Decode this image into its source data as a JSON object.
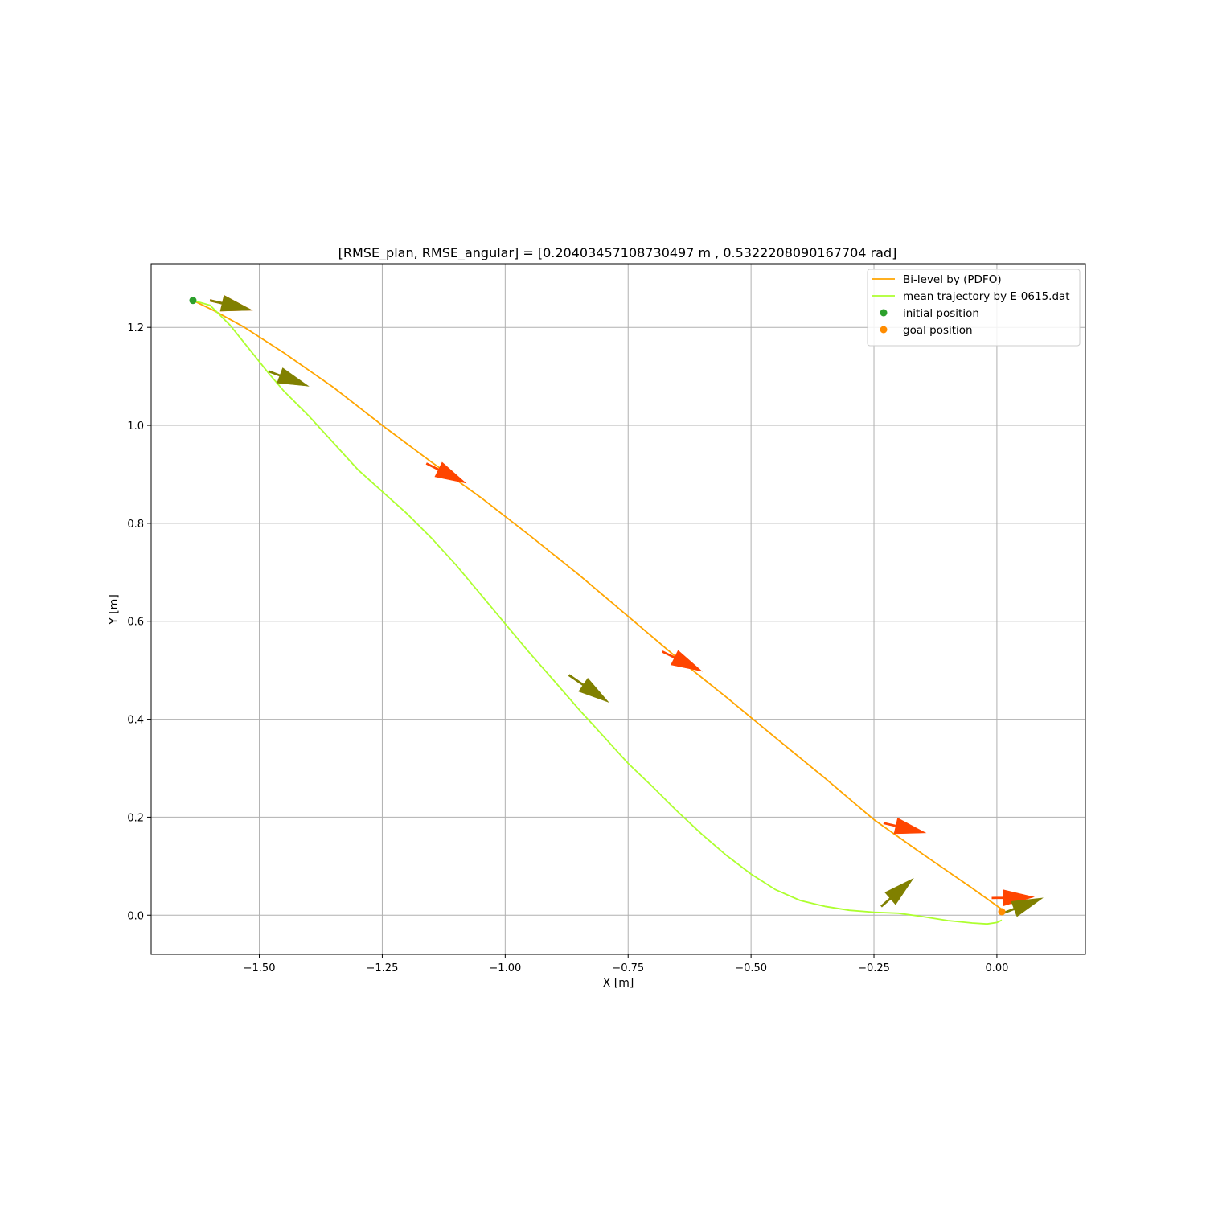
{
  "chart_data": {
    "type": "line",
    "title": "[RMSE_plan, RMSE_angular] = [0.20403457108730497 m , 0.5322208090167704 rad]",
    "xlabel": "X [m]",
    "ylabel": "Y [m]",
    "xlim": [
      -1.72,
      0.18
    ],
    "ylim": [
      -0.08,
      1.33
    ],
    "grid": true,
    "legend_position": "top-right",
    "xticks": [
      {
        "value": -1.5,
        "label": "−1.50"
      },
      {
        "value": -1.25,
        "label": "−1.25"
      },
      {
        "value": -1.0,
        "label": "−1.00"
      },
      {
        "value": -0.75,
        "label": "−0.75"
      },
      {
        "value": -0.5,
        "label": "−0.50"
      },
      {
        "value": -0.25,
        "label": "−0.25"
      },
      {
        "value": 0.0,
        "label": "0.00"
      }
    ],
    "yticks": [
      {
        "value": 0.0,
        "label": "0.0"
      },
      {
        "value": 0.2,
        "label": "0.2"
      },
      {
        "value": 0.4,
        "label": "0.4"
      },
      {
        "value": 0.6,
        "label": "0.6"
      },
      {
        "value": 0.8,
        "label": "0.8"
      },
      {
        "value": 1.0,
        "label": "1.0"
      },
      {
        "value": 1.2,
        "label": "1.2"
      }
    ],
    "series": [
      {
        "name": "Bi-level by (PDFO)",
        "kind": "line",
        "color": "#ffa500",
        "x": [
          -1.635,
          -1.59,
          -1.53,
          -1.45,
          -1.35,
          -1.25,
          -1.15,
          -1.05,
          -0.95,
          -0.85,
          -0.75,
          -0.65,
          -0.55,
          -0.45,
          -0.35,
          -0.25,
          -0.15,
          -0.05,
          0.01
        ],
        "y": [
          1.255,
          1.233,
          1.2,
          1.148,
          1.078,
          1.0,
          0.925,
          0.853,
          0.775,
          0.695,
          0.61,
          0.525,
          0.445,
          0.362,
          0.28,
          0.195,
          0.124,
          0.055,
          0.012
        ]
      },
      {
        "name": "mean trajectory by E-0615.dat",
        "kind": "line",
        "color": "#adff2f",
        "x": [
          -1.635,
          -1.6,
          -1.56,
          -1.52,
          -1.48,
          -1.45,
          -1.4,
          -1.35,
          -1.3,
          -1.25,
          -1.2,
          -1.15,
          -1.1,
          -1.05,
          -1.0,
          -0.95,
          -0.9,
          -0.85,
          -0.8,
          -0.75,
          -0.7,
          -0.65,
          -0.6,
          -0.55,
          -0.5,
          -0.45,
          -0.4,
          -0.35,
          -0.3,
          -0.25,
          -0.2,
          -0.15,
          -0.1,
          -0.05,
          -0.02,
          0.0,
          0.01
        ],
        "y": [
          1.255,
          1.245,
          1.205,
          1.155,
          1.105,
          1.07,
          1.02,
          0.965,
          0.91,
          0.865,
          0.82,
          0.77,
          0.715,
          0.655,
          0.595,
          0.535,
          0.478,
          0.42,
          0.365,
          0.31,
          0.262,
          0.212,
          0.165,
          0.122,
          0.084,
          0.052,
          0.03,
          0.018,
          0.01,
          0.006,
          0.004,
          -0.003,
          -0.011,
          -0.016,
          -0.018,
          -0.015,
          -0.01
        ]
      },
      {
        "name": "initial position",
        "kind": "point",
        "color": "#2ca02c",
        "x": [
          -1.635
        ],
        "y": [
          1.255
        ]
      },
      {
        "name": "goal position",
        "kind": "point",
        "color": "#ff8c00",
        "x": [
          0.01
        ],
        "y": [
          0.007
        ]
      }
    ],
    "arrows": [
      {
        "series": "Bi-level by (PDFO)",
        "color": "#ff4500",
        "x": -1.6,
        "y": 1.255,
        "dx": 0.085,
        "dy": -0.02
      },
      {
        "series": "Bi-level by (PDFO)",
        "color": "#ff4500",
        "x": -1.16,
        "y": 0.922,
        "dx": 0.08,
        "dy": -0.04
      },
      {
        "series": "Bi-level by (PDFO)",
        "color": "#ff4500",
        "x": -0.68,
        "y": 0.538,
        "dx": 0.08,
        "dy": -0.04
      },
      {
        "series": "Bi-level by (PDFO)",
        "color": "#ff4500",
        "x": -0.23,
        "y": 0.188,
        "dx": 0.085,
        "dy": -0.02
      },
      {
        "series": "Bi-level by (PDFO)",
        "color": "#ff4500",
        "x": -0.01,
        "y": 0.035,
        "dx": 0.085,
        "dy": 0.002
      },
      {
        "series": "mean trajectory by E-0615.dat",
        "color": "#808000",
        "x": -1.6,
        "y": 1.255,
        "dx": 0.085,
        "dy": -0.02
      },
      {
        "series": "mean trajectory by E-0615.dat",
        "color": "#808000",
        "x": -1.48,
        "y": 1.11,
        "dx": 0.08,
        "dy": -0.03
      },
      {
        "series": "mean trajectory by E-0615.dat",
        "color": "#808000",
        "x": -0.87,
        "y": 0.49,
        "dx": 0.08,
        "dy": -0.055
      },
      {
        "series": "mean trajectory by E-0615.dat",
        "color": "#808000",
        "x": -0.235,
        "y": 0.018,
        "dx": 0.065,
        "dy": 0.057
      },
      {
        "series": "mean trajectory by E-0615.dat",
        "color": "#808000",
        "x": 0.015,
        "y": 0.005,
        "dx": 0.078,
        "dy": 0.03
      }
    ]
  }
}
